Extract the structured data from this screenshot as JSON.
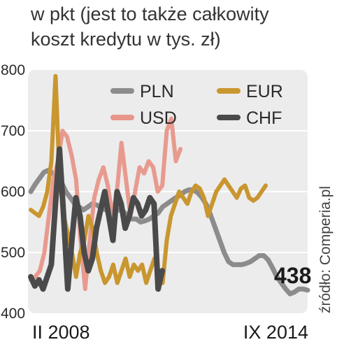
{
  "subtitle_lines": [
    "w pkt (jest to także całkowity",
    "koszt kredytu w tys. zł)"
  ],
  "source": "źródło: Comperia.pl",
  "colors": {
    "PLN": "#8c8c8c",
    "USD": "#e8968a",
    "EUR": "#c9962f",
    "CHF": "#4a4a4a",
    "plot_bg": "#ececec",
    "grid": "#ffffff"
  },
  "chart_data": {
    "type": "line",
    "title": "",
    "subtitle": "w pkt (jest to także całkowity koszt kredytu w tys. zł)",
    "xlabel": "",
    "ylabel": "",
    "x_start_label": "II 2008",
    "x_end_label": "IX 2014",
    "ylim": [
      400,
      800
    ],
    "yticks": [
      400,
      500,
      600,
      700,
      800
    ],
    "grid": true,
    "legend": "top",
    "end_label": "438",
    "series": [
      {
        "name": "PLN",
        "color": "#8c8c8c",
        "values": [
          600,
          612,
          622,
          632,
          635,
          630,
          625,
          615,
          600,
          590,
          580,
          575,
          570,
          575,
          580,
          578,
          574,
          570,
          570,
          573,
          570,
          568,
          560,
          555,
          555,
          550,
          552,
          555,
          560,
          565,
          575,
          580,
          585,
          590,
          594,
          600,
          603,
          603,
          598,
          590,
          578,
          560,
          540,
          520,
          500,
          485,
          480,
          480,
          480,
          482,
          485,
          490,
          495,
          495,
          488,
          475,
          460,
          450,
          440,
          432,
          435,
          440,
          440,
          438
        ]
      },
      {
        "name": "USD",
        "color": "#e8968a",
        "values": [
          455,
          460,
          470,
          500,
          560,
          620,
          650,
          700,
          690,
          660,
          620,
          520,
          440,
          520,
          590,
          620,
          640,
          610,
          560,
          600,
          680,
          620,
          560,
          600,
          640,
          630,
          650,
          640,
          600,
          610,
          700,
          720,
          650,
          670
        ]
      },
      {
        "name": "EUR",
        "color": "#c9962f",
        "values": [
          570,
          565,
          560,
          575,
          600,
          650,
          790,
          620,
          560,
          530,
          500,
          460,
          500,
          520,
          560,
          540,
          500,
          470,
          450,
          460,
          480,
          450,
          470,
          490,
          460,
          480,
          470,
          480,
          450,
          470,
          490,
          470,
          450,
          520,
          560,
          580,
          600,
          590,
          580,
          600,
          610,
          605,
          590,
          560,
          580,
          600,
          610,
          620,
          610,
          600,
          590,
          605,
          610,
          590,
          585,
          590,
          600,
          610
        ]
      },
      {
        "name": "CHF",
        "color": "#4a4a4a",
        "values": [
          460,
          445,
          455,
          440,
          460,
          480,
          580,
          670,
          560,
          440,
          520,
          590,
          560,
          500,
          470,
          490,
          540,
          570,
          600,
          560,
          520,
          600,
          580,
          540,
          560,
          590,
          580,
          560,
          570,
          590,
          580,
          440,
          470
        ]
      }
    ]
  }
}
